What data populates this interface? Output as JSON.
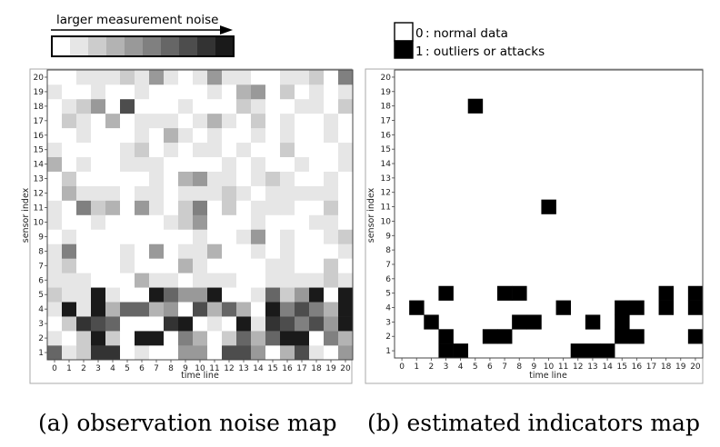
{
  "chart_data": [
    {
      "type": "heatmap",
      "caption": "(a) observation noise map",
      "xlabel": "time line",
      "ylabel": "sensor index",
      "x_ticks": [
        "0",
        "1",
        "2",
        "3",
        "4",
        "5",
        "6",
        "7",
        "8",
        "9",
        "10",
        "11",
        "12",
        "13",
        "14",
        "15",
        "16",
        "17",
        "18",
        "19",
        "20"
      ],
      "y_ticks": [
        "1",
        "2",
        "3",
        "4",
        "5",
        "6",
        "7",
        "8",
        "9",
        "10",
        "11",
        "12",
        "13",
        "14",
        "15",
        "16",
        "17",
        "18",
        "19",
        "20"
      ],
      "colorbar_label": "larger measurement noise",
      "colorbar_levels": [
        0,
        1,
        2,
        3,
        4,
        5,
        6,
        7,
        8,
        9
      ],
      "value_range": [
        0,
        9
      ],
      "rows": [
        [
          6,
          1,
          2,
          8,
          8,
          0,
          1,
          0,
          0,
          4,
          4,
          0,
          7,
          7,
          4,
          0,
          3,
          7,
          1,
          0,
          4
        ],
        [
          1,
          0,
          2,
          9,
          2,
          0,
          9,
          9,
          0,
          5,
          3,
          0,
          2,
          6,
          3,
          6,
          9,
          9,
          0,
          5,
          3
        ],
        [
          0,
          2,
          8,
          7,
          6,
          0,
          0,
          0,
          8,
          9,
          0,
          1,
          0,
          9,
          1,
          8,
          7,
          5,
          7,
          4,
          9
        ],
        [
          1,
          9,
          1,
          9,
          3,
          6,
          6,
          3,
          4,
          0,
          7,
          3,
          6,
          3,
          0,
          9,
          5,
          7,
          5,
          3,
          9
        ],
        [
          2,
          1,
          1,
          9,
          1,
          0,
          0,
          9,
          6,
          4,
          4,
          9,
          0,
          0,
          1,
          6,
          2,
          4,
          9,
          0,
          9
        ],
        [
          1,
          1,
          1,
          0,
          0,
          0,
          3,
          1,
          1,
          0,
          1,
          1,
          1,
          0,
          0,
          1,
          1,
          1,
          1,
          2,
          1
        ],
        [
          1,
          2,
          0,
          0,
          0,
          1,
          0,
          0,
          0,
          3,
          1,
          0,
          0,
          0,
          0,
          1,
          1,
          0,
          0,
          2,
          0
        ],
        [
          1,
          5,
          0,
          0,
          0,
          1,
          0,
          4,
          0,
          1,
          1,
          3,
          0,
          0,
          1,
          0,
          1,
          0,
          0,
          0,
          1
        ],
        [
          0,
          1,
          0,
          0,
          0,
          0,
          0,
          0,
          0,
          0,
          1,
          0,
          0,
          1,
          4,
          0,
          1,
          0,
          0,
          1,
          2
        ],
        [
          1,
          0,
          0,
          1,
          0,
          0,
          0,
          0,
          1,
          2,
          4,
          0,
          0,
          0,
          1,
          0,
          0,
          0,
          1,
          1,
          0
        ],
        [
          1,
          0,
          5,
          2,
          3,
          0,
          4,
          1,
          0,
          2,
          5,
          0,
          2,
          0,
          1,
          1,
          1,
          0,
          0,
          2,
          0
        ],
        [
          0,
          3,
          1,
          1,
          1,
          0,
          1,
          1,
          0,
          1,
          1,
          1,
          2,
          1,
          0,
          1,
          1,
          1,
          1,
          1,
          0
        ],
        [
          0,
          2,
          0,
          0,
          0,
          0,
          0,
          1,
          0,
          3,
          4,
          1,
          1,
          0,
          1,
          2,
          1,
          0,
          0,
          1,
          0
        ],
        [
          3,
          0,
          1,
          0,
          0,
          1,
          1,
          1,
          0,
          0,
          0,
          0,
          1,
          0,
          1,
          0,
          0,
          1,
          0,
          0,
          1
        ],
        [
          1,
          0,
          0,
          0,
          0,
          1,
          2,
          0,
          1,
          0,
          1,
          1,
          0,
          1,
          0,
          0,
          2,
          0,
          0,
          0,
          1
        ],
        [
          0,
          0,
          1,
          0,
          0,
          0,
          1,
          0,
          3,
          1,
          0,
          1,
          0,
          0,
          1,
          0,
          1,
          0,
          0,
          1,
          0
        ],
        [
          0,
          2,
          1,
          0,
          3,
          0,
          1,
          1,
          1,
          0,
          1,
          3,
          1,
          0,
          2,
          0,
          1,
          0,
          0,
          1,
          0
        ],
        [
          0,
          1,
          2,
          4,
          0,
          7,
          0,
          0,
          0,
          1,
          0,
          0,
          0,
          2,
          1,
          0,
          0,
          1,
          1,
          0,
          2
        ],
        [
          1,
          0,
          0,
          1,
          0,
          0,
          1,
          0,
          0,
          0,
          0,
          1,
          0,
          3,
          4,
          0,
          2,
          0,
          1,
          0,
          1
        ],
        [
          0,
          0,
          1,
          1,
          1,
          2,
          1,
          4,
          1,
          0,
          1,
          4,
          1,
          1,
          0,
          0,
          1,
          1,
          2,
          0,
          5
        ]
      ]
    },
    {
      "type": "heatmap",
      "caption": "(b) estimated indicators map",
      "xlabel": "time line",
      "ylabel": "sensor index",
      "x_ticks": [
        "0",
        "1",
        "2",
        "3",
        "4",
        "5",
        "6",
        "7",
        "8",
        "9",
        "10",
        "11",
        "12",
        "13",
        "14",
        "15",
        "16",
        "17",
        "18",
        "19",
        "20"
      ],
      "y_ticks": [
        "1",
        "2",
        "3",
        "4",
        "5",
        "6",
        "7",
        "8",
        "9",
        "10",
        "11",
        "12",
        "13",
        "14",
        "15",
        "16",
        "17",
        "18",
        "19",
        "20"
      ],
      "legend": [
        {
          "value": "0",
          "label": ": normal data",
          "color": "#ffffff"
        },
        {
          "value": "1",
          "label": ": outliers or attacks",
          "color": "#000000"
        }
      ],
      "cells": [
        [
          3,
          1
        ],
        [
          4,
          1
        ],
        [
          12,
          1
        ],
        [
          13,
          1
        ],
        [
          14,
          1
        ],
        [
          3,
          2
        ],
        [
          6,
          2
        ],
        [
          7,
          2
        ],
        [
          15,
          2
        ],
        [
          16,
          2
        ],
        [
          20,
          2
        ],
        [
          2,
          3
        ],
        [
          8,
          3
        ],
        [
          9,
          3
        ],
        [
          13,
          3
        ],
        [
          15,
          3
        ],
        [
          1,
          4
        ],
        [
          11,
          4
        ],
        [
          15,
          4
        ],
        [
          16,
          4
        ],
        [
          18,
          4
        ],
        [
          20,
          4
        ],
        [
          3,
          5
        ],
        [
          7,
          5
        ],
        [
          8,
          5
        ],
        [
          18,
          5
        ],
        [
          20,
          5
        ],
        [
          10,
          11
        ],
        [
          5,
          18
        ]
      ]
    }
  ]
}
